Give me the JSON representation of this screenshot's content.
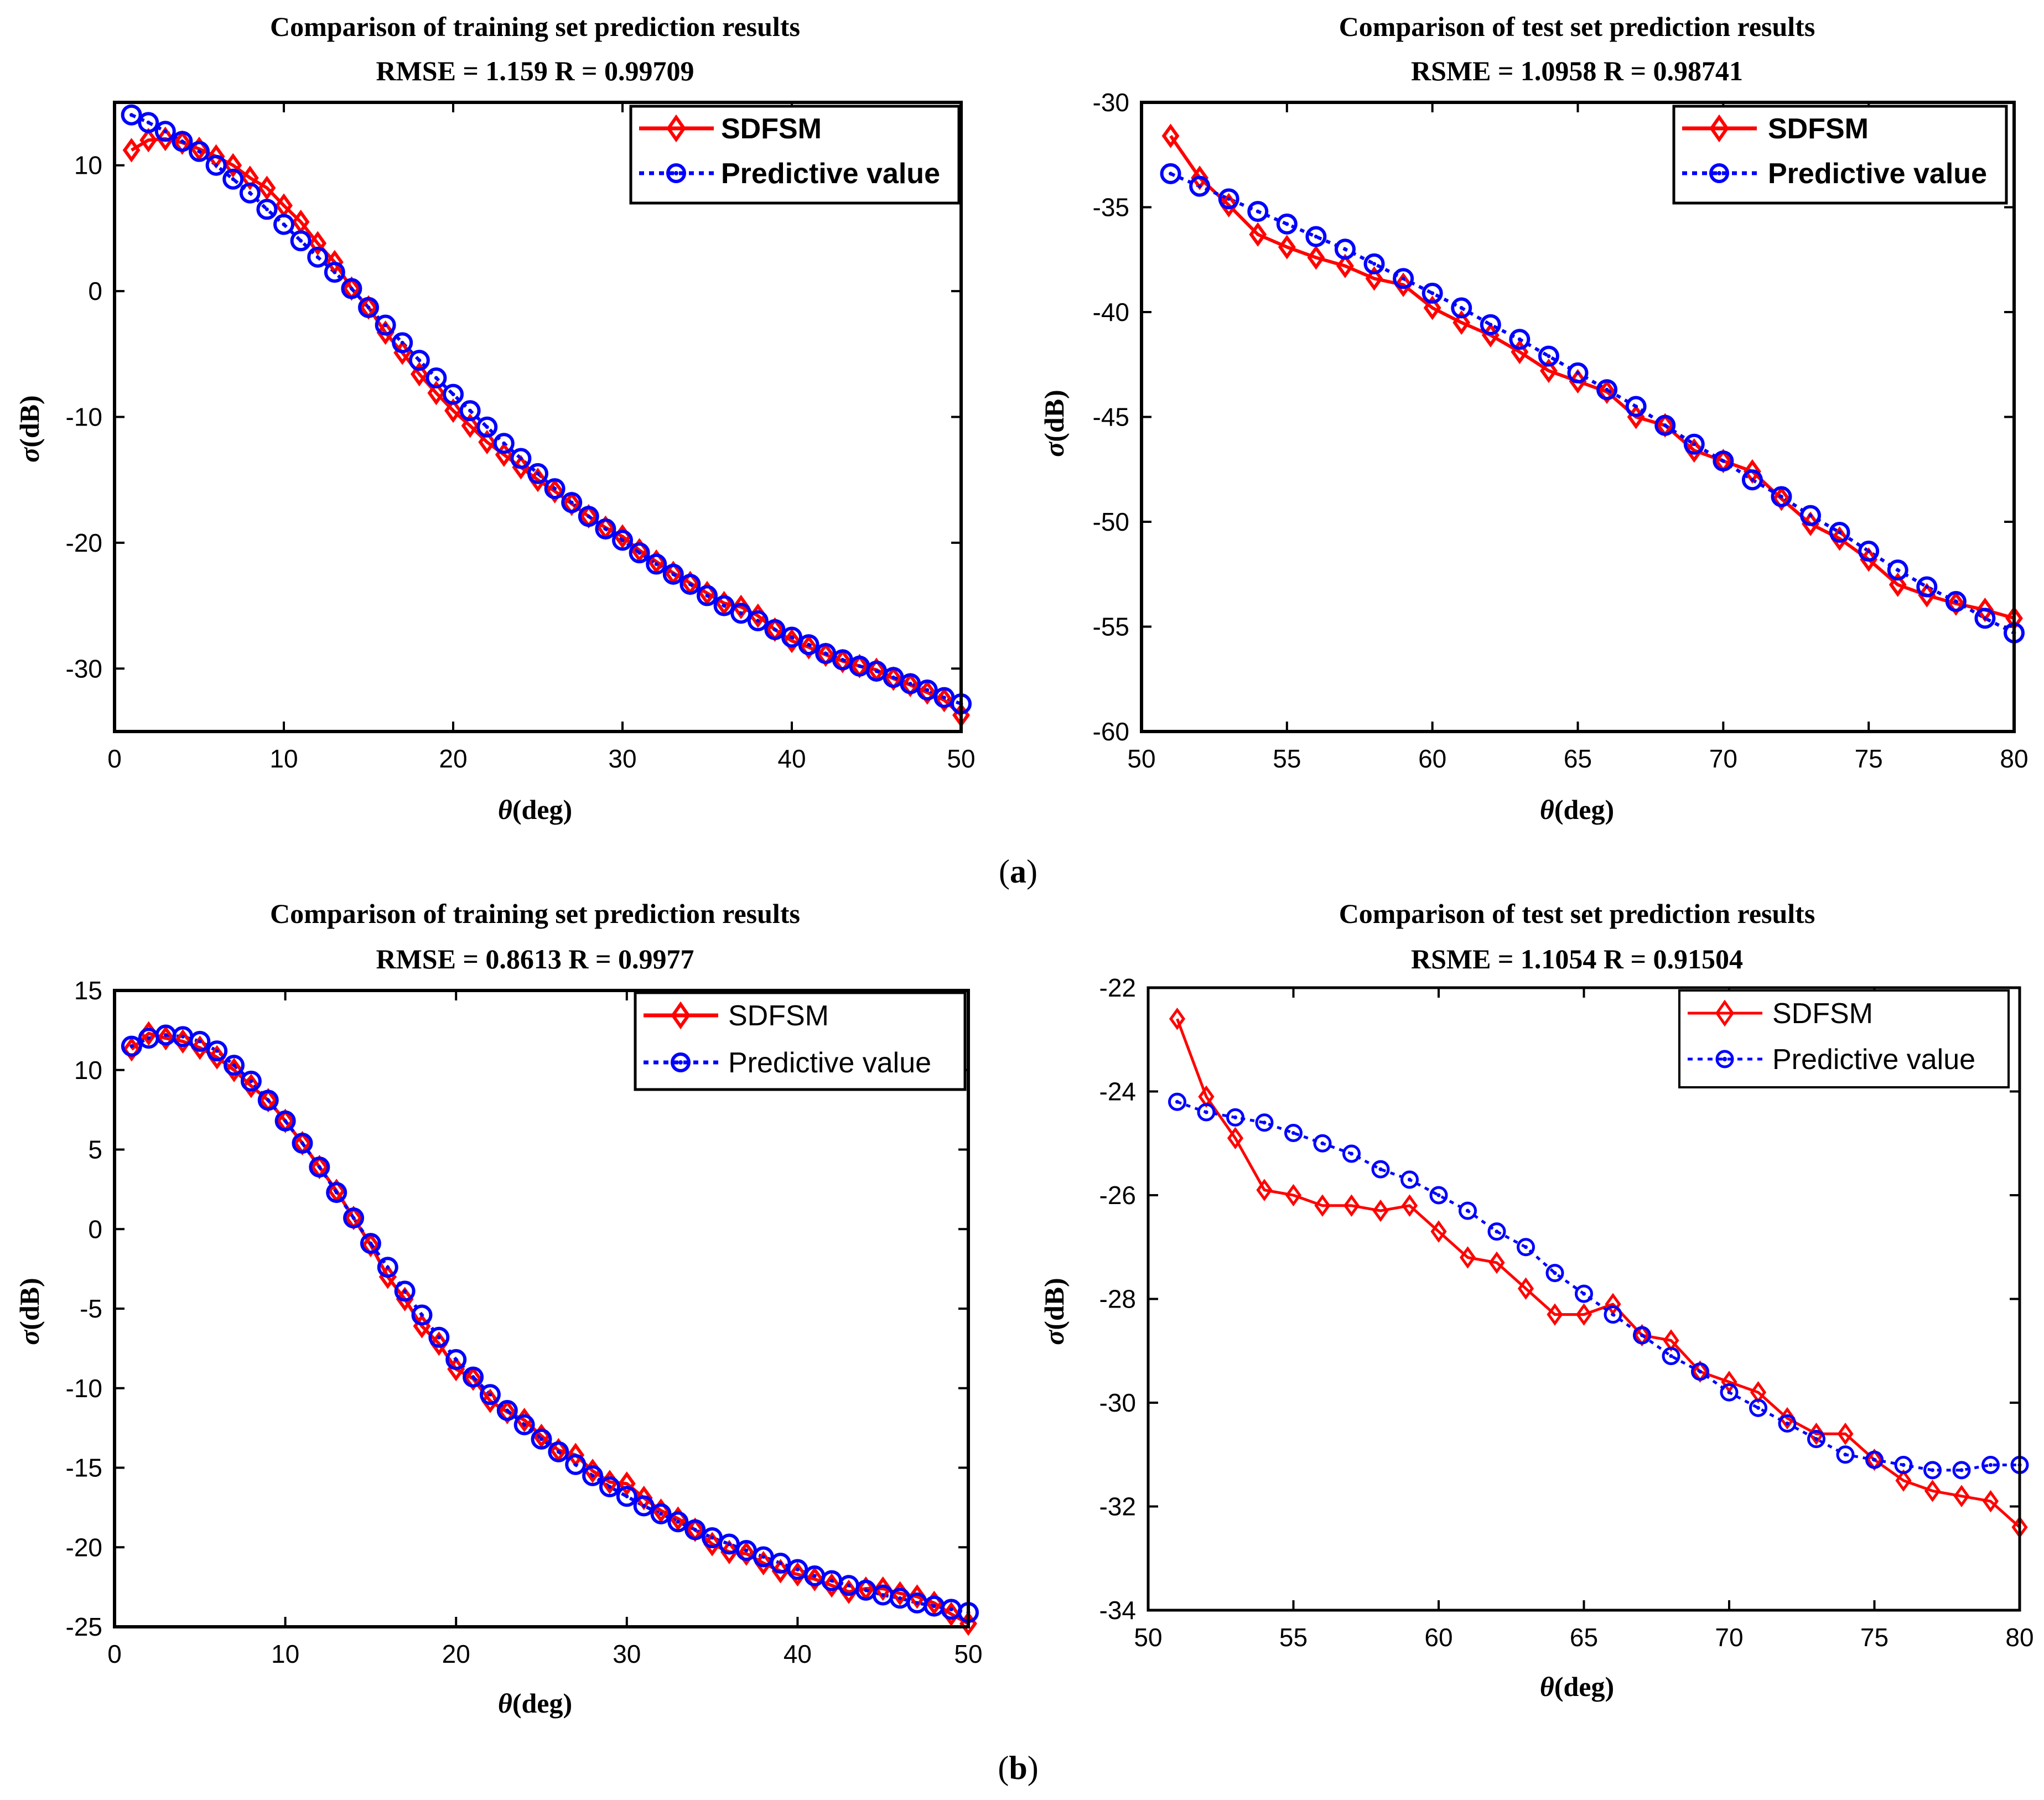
{
  "figure": {
    "caption_a_open": "(",
    "caption_a_letter": "a",
    "caption_a_close": ")",
    "caption_b_open": "(",
    "caption_b_letter": "b",
    "caption_b_close": ")"
  },
  "legend": {
    "series1": "SDFSM",
    "series2": "Predictive value"
  },
  "colors": {
    "sdfsm": "#ff0000",
    "predictive": "#0000ff"
  },
  "chart_data": [
    {
      "id": "a_train",
      "type": "line",
      "title": "Comparison of training set prediction results",
      "subtitle": "RMSE = 1.159  R = 0.99709",
      "xlabel_symbol": "θ",
      "xlabel_unit": "(deg)",
      "ylabel_symbol": "σ",
      "ylabel_unit": "(dB)",
      "xlim": [
        0,
        50
      ],
      "ylim": [
        -35,
        15
      ],
      "xticks": [
        0,
        10,
        20,
        30,
        40,
        50
      ],
      "yticks": [
        -30,
        -20,
        -10,
        0,
        10
      ],
      "x": [
        1,
        2,
        3,
        4,
        5,
        6,
        7,
        8,
        9,
        10,
        11,
        12,
        13,
        14,
        15,
        16,
        17,
        18,
        19,
        20,
        21,
        22,
        23,
        24,
        25,
        26,
        27,
        28,
        29,
        30,
        31,
        32,
        33,
        34,
        35,
        36,
        37,
        38,
        39,
        40,
        41,
        42,
        43,
        44,
        45,
        46,
        47,
        48,
        49,
        50
      ],
      "series": [
        {
          "name": "SDFSM",
          "values": [
            11.2,
            12.0,
            12.1,
            11.8,
            11.3,
            10.7,
            10.0,
            9.0,
            8.2,
            6.8,
            5.5,
            3.8,
            2.3,
            0.2,
            -1.3,
            -3.3,
            -4.9,
            -6.6,
            -8.1,
            -9.5,
            -10.7,
            -12.0,
            -13.0,
            -14.0,
            -15.0,
            -15.9,
            -16.9,
            -17.9,
            -18.8,
            -19.5,
            -20.6,
            -21.5,
            -22.4,
            -23.2,
            -24.0,
            -24.8,
            -25.1,
            -25.8,
            -26.9,
            -27.8,
            -28.3,
            -28.9,
            -29.4,
            -29.8,
            -30.1,
            -30.8,
            -31.3,
            -31.9,
            -32.5,
            -33.7
          ]
        },
        {
          "name": "Predictive value",
          "values": [
            14.0,
            13.4,
            12.7,
            11.9,
            11.1,
            10.0,
            8.9,
            7.8,
            6.5,
            5.3,
            4.0,
            2.7,
            1.5,
            0.2,
            -1.3,
            -2.7,
            -4.1,
            -5.5,
            -6.9,
            -8.2,
            -9.5,
            -10.8,
            -12.1,
            -13.3,
            -14.5,
            -15.7,
            -16.8,
            -17.9,
            -18.9,
            -19.8,
            -20.8,
            -21.7,
            -22.5,
            -23.3,
            -24.2,
            -25.0,
            -25.6,
            -26.2,
            -26.9,
            -27.5,
            -28.1,
            -28.8,
            -29.3,
            -29.8,
            -30.2,
            -30.7,
            -31.2,
            -31.7,
            -32.3,
            -32.8
          ]
        }
      ]
    },
    {
      "id": "a_test",
      "type": "line",
      "title": "Comparison of test set prediction results",
      "subtitle": "RSME = 1.0958  R = 0.98741",
      "xlabel_symbol": "θ",
      "xlabel_unit": "(deg)",
      "ylabel_symbol": "σ",
      "ylabel_unit": "(dB)",
      "xlim": [
        50,
        80
      ],
      "ylim": [
        -60,
        -30
      ],
      "xticks": [
        50,
        55,
        60,
        65,
        70,
        75,
        80
      ],
      "yticks": [
        -60,
        -55,
        -50,
        -45,
        -40,
        -35,
        -30
      ],
      "x": [
        51,
        52,
        53,
        54,
        55,
        56,
        57,
        58,
        59,
        60,
        61,
        62,
        63,
        64,
        65,
        66,
        67,
        68,
        69,
        70,
        71,
        72,
        73,
        74,
        75,
        76,
        77,
        78,
        79,
        80
      ],
      "series": [
        {
          "name": "SDFSM",
          "values": [
            -31.6,
            -33.6,
            -34.9,
            -36.3,
            -36.9,
            -37.4,
            -37.8,
            -38.4,
            -38.7,
            -39.8,
            -40.5,
            -41.1,
            -41.9,
            -42.8,
            -43.3,
            -43.8,
            -45.0,
            -45.4,
            -46.6,
            -47.1,
            -47.6,
            -48.9,
            -50.1,
            -50.8,
            -51.8,
            -53.0,
            -53.5,
            -53.9,
            -54.2,
            -54.6
          ]
        },
        {
          "name": "Predictive value",
          "values": [
            -33.4,
            -34.0,
            -34.6,
            -35.2,
            -35.8,
            -36.4,
            -37.0,
            -37.7,
            -38.4,
            -39.1,
            -39.8,
            -40.6,
            -41.3,
            -42.1,
            -42.9,
            -43.7,
            -44.5,
            -45.4,
            -46.3,
            -47.1,
            -48.0,
            -48.8,
            -49.7,
            -50.5,
            -51.4,
            -52.3,
            -53.1,
            -53.8,
            -54.6,
            -55.3
          ]
        }
      ]
    },
    {
      "id": "b_train",
      "type": "line",
      "title": "Comparison of training set prediction results",
      "subtitle": "RMSE = 0.8613  R = 0.9977",
      "xlabel_symbol": "θ",
      "xlabel_unit": "(deg)",
      "ylabel_symbol": "σ",
      "ylabel_unit": "(dB)",
      "xlim": [
        0,
        50
      ],
      "ylim": [
        -25,
        15
      ],
      "xticks": [
        0,
        10,
        20,
        30,
        40,
        50
      ],
      "yticks": [
        -25,
        -20,
        -15,
        -10,
        -5,
        0,
        5,
        10,
        15
      ],
      "x": [
        1,
        2,
        3,
        4,
        5,
        6,
        7,
        8,
        9,
        10,
        11,
        12,
        13,
        14,
        15,
        16,
        17,
        18,
        19,
        20,
        21,
        22,
        23,
        24,
        25,
        26,
        27,
        28,
        29,
        30,
        31,
        32,
        33,
        34,
        35,
        36,
        37,
        38,
        39,
        40,
        41,
        42,
        43,
        44,
        45,
        46,
        47,
        48,
        49,
        50
      ],
      "series": [
        {
          "name": "SDFSM",
          "values": [
            11.3,
            12.3,
            12.0,
            11.8,
            11.4,
            10.8,
            10.0,
            9.0,
            8.1,
            6.8,
            5.4,
            3.9,
            2.4,
            0.7,
            -1.0,
            -3.0,
            -4.4,
            -6.1,
            -7.2,
            -8.8,
            -9.4,
            -10.8,
            -11.5,
            -12.0,
            -13.0,
            -13.9,
            -14.2,
            -15.2,
            -15.9,
            -16.0,
            -16.9,
            -17.7,
            -18.2,
            -18.9,
            -19.8,
            -20.3,
            -20.4,
            -21.0,
            -21.5,
            -21.7,
            -22.0,
            -22.4,
            -22.8,
            -22.6,
            -22.6,
            -22.9,
            -23.1,
            -23.5,
            -24.2,
            -24.8
          ]
        },
        {
          "name": "Predictive value",
          "values": [
            11.5,
            12.0,
            12.2,
            12.1,
            11.8,
            11.2,
            10.3,
            9.3,
            8.1,
            6.8,
            5.4,
            3.9,
            2.3,
            0.7,
            -0.9,
            -2.4,
            -3.9,
            -5.4,
            -6.8,
            -8.2,
            -9.3,
            -10.4,
            -11.4,
            -12.3,
            -13.2,
            -14.0,
            -14.8,
            -15.5,
            -16.2,
            -16.8,
            -17.4,
            -17.9,
            -18.4,
            -18.9,
            -19.4,
            -19.8,
            -20.2,
            -20.6,
            -21.0,
            -21.4,
            -21.8,
            -22.1,
            -22.4,
            -22.7,
            -23.0,
            -23.2,
            -23.5,
            -23.7,
            -23.9,
            -24.1
          ]
        }
      ]
    },
    {
      "id": "b_test",
      "type": "line",
      "title": "Comparison of test set prediction results",
      "subtitle": "RSME = 1.1054  R = 0.91504",
      "xlabel_symbol": "θ",
      "xlabel_unit": "(deg)",
      "ylabel_symbol": "σ",
      "ylabel_unit": "(dB)",
      "xlim": [
        50,
        80
      ],
      "ylim": [
        -34,
        -22
      ],
      "xticks": [
        50,
        55,
        60,
        65,
        70,
        75,
        80
      ],
      "yticks": [
        -34,
        -32,
        -30,
        -28,
        -26,
        -24,
        -22
      ],
      "x": [
        51,
        52,
        53,
        54,
        55,
        56,
        57,
        58,
        59,
        60,
        61,
        62,
        63,
        64,
        65,
        66,
        67,
        68,
        69,
        70,
        71,
        72,
        73,
        74,
        75,
        76,
        77,
        78,
        79,
        80
      ],
      "series": [
        {
          "name": "SDFSM",
          "values": [
            -22.6,
            -24.1,
            -24.9,
            -25.9,
            -26.0,
            -26.2,
            -26.2,
            -26.3,
            -26.2,
            -26.7,
            -27.2,
            -27.3,
            -27.8,
            -28.3,
            -28.3,
            -28.1,
            -28.7,
            -28.8,
            -29.4,
            -29.6,
            -29.8,
            -30.3,
            -30.6,
            -30.6,
            -31.1,
            -31.5,
            -31.7,
            -31.8,
            -31.9,
            -32.4
          ]
        },
        {
          "name": "Predictive value",
          "values": [
            -24.2,
            -24.4,
            -24.5,
            -24.6,
            -24.8,
            -25.0,
            -25.2,
            -25.5,
            -25.7,
            -26.0,
            -26.3,
            -26.7,
            -27.0,
            -27.5,
            -27.9,
            -28.3,
            -28.7,
            -29.1,
            -29.4,
            -29.8,
            -30.1,
            -30.4,
            -30.7,
            -31.0,
            -31.1,
            -31.2,
            -31.3,
            -31.3,
            -31.2,
            -31.2
          ]
        }
      ]
    }
  ]
}
